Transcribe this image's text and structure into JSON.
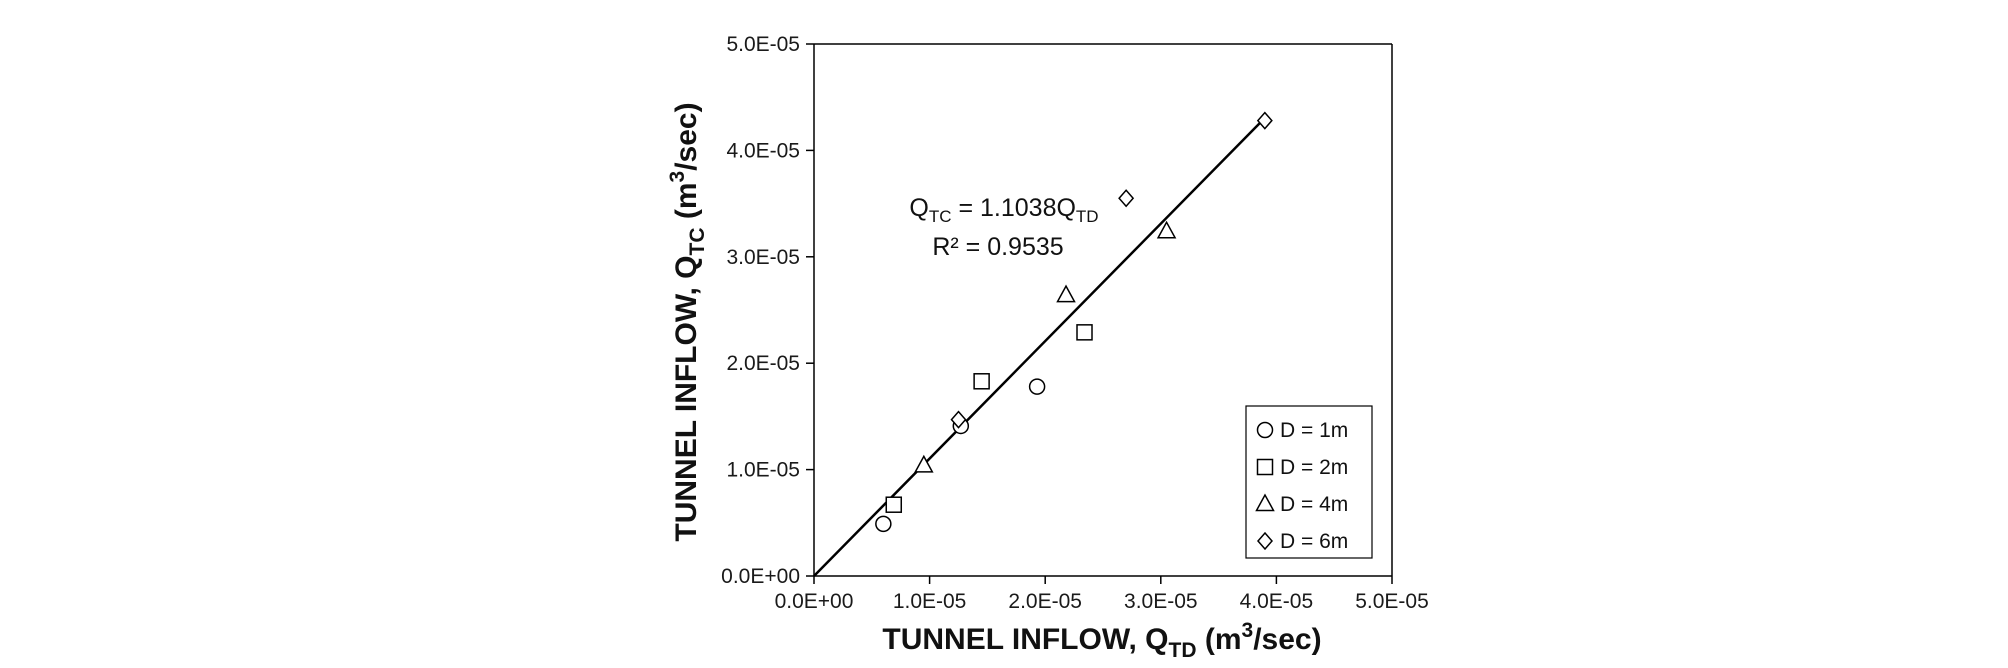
{
  "chart_data": {
    "type": "scatter",
    "xlim": [
      0,
      5e-05
    ],
    "ylim": [
      0,
      5e-05
    ],
    "x_ticks": [
      0,
      1e-05,
      2e-05,
      3e-05,
      4e-05,
      5e-05
    ],
    "y_ticks": [
      0,
      1e-05,
      2e-05,
      3e-05,
      4e-05,
      5e-05
    ],
    "x_tick_labels": [
      "0.0E+00",
      "1.0E-05",
      "2.0E-05",
      "3.0E-05",
      "4.0E-05",
      "5.0E-05"
    ],
    "y_tick_labels": [
      "0.0E+00",
      "1.0E-05",
      "2.0E-05",
      "3.0E-05",
      "4.0E-05",
      "5.0E-05"
    ],
    "xlabel": {
      "main": "TUNNEL INFLOW, Q",
      "sub": "TD",
      "unit_pre": " (m",
      "sup": "3",
      "unit_post": "/sec)"
    },
    "ylabel": {
      "main": "TUNNEL INFLOW, Q",
      "sub": "TC",
      "unit_pre": " (m",
      "sup": "3",
      "unit_post": "/sec)"
    },
    "grid": false,
    "legend_position": "bottom-right",
    "series": [
      {
        "name": "D = 1m",
        "marker": "circle",
        "points": [
          [
            6e-06,
            4.9e-06
          ],
          [
            1.27e-05,
            1.41e-05
          ],
          [
            1.93e-05,
            1.78e-05
          ]
        ]
      },
      {
        "name": "D = 2m",
        "marker": "square",
        "points": [
          [
            6.9e-06,
            6.7e-06
          ],
          [
            1.45e-05,
            1.83e-05
          ],
          [
            2.34e-05,
            2.29e-05
          ]
        ]
      },
      {
        "name": "D = 4m",
        "marker": "triangle",
        "points": [
          [
            9.5e-06,
            1.04e-05
          ],
          [
            2.18e-05,
            2.64e-05
          ],
          [
            3.05e-05,
            3.24e-05
          ]
        ]
      },
      {
        "name": "D = 6m",
        "marker": "diamond",
        "points": [
          [
            1.25e-05,
            1.47e-05
          ],
          [
            2.7e-05,
            3.55e-05
          ],
          [
            3.9e-05,
            4.28e-05
          ]
        ]
      }
    ],
    "trendline": {
      "slope": 1.1038,
      "x_range": [
        0,
        3.88e-05
      ]
    },
    "annotation": {
      "eq_lhs": "Q",
      "eq_lhs_sub": "TC",
      "eq_mid": " = 1.1038Q",
      "eq_rhs_sub": "TD",
      "r2": "R² = 0.9535"
    }
  }
}
